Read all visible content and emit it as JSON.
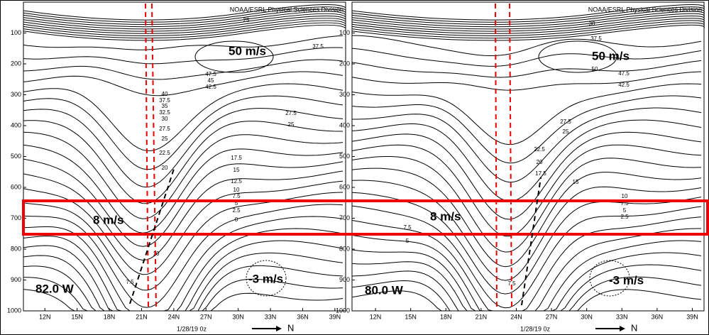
{
  "chart_data": [
    {
      "type": "contour",
      "title": "NOAA/ESRL Physical Sciences Division",
      "xlim": [
        10,
        40
      ],
      "xticks": [
        {
          "value": 12,
          "label": "12N"
        },
        {
          "value": 15,
          "label": "15N"
        },
        {
          "value": 18,
          "label": "18N"
        },
        {
          "value": 21,
          "label": "21N"
        },
        {
          "value": 24,
          "label": "24N"
        },
        {
          "value": 27,
          "label": "27N"
        },
        {
          "value": 30,
          "label": "30N"
        },
        {
          "value": 33,
          "label": "33N"
        },
        {
          "value": 36,
          "label": "36N"
        },
        {
          "value": 39,
          "label": "39N"
        }
      ],
      "ylim": [
        1000,
        0
      ],
      "yticks": [
        100,
        200,
        300,
        400,
        500,
        600,
        700,
        800,
        900,
        1000
      ],
      "x_label": "1/28/19 0z",
      "x_arrow_label": "N",
      "longitude": "82.0 W",
      "annotations": [
        "50 m/s",
        "8 m/s",
        "-3 m/s"
      ],
      "contour_labels": [
        25,
        37.5,
        47.5,
        45,
        42.5,
        40,
        37.5,
        35,
        32.5,
        30,
        27.5,
        25,
        22.5,
        20,
        27.5,
        25,
        17.5,
        15,
        12.5,
        10,
        7.5,
        5,
        2.5,
        0,
        10,
        7.5
      ]
    },
    {
      "type": "contour",
      "title": "NOAA/ESRL Physical Sciences Division",
      "xlim": [
        10,
        40
      ],
      "xticks": [
        {
          "value": 12,
          "label": "12N"
        },
        {
          "value": 15,
          "label": "15N"
        },
        {
          "value": 18,
          "label": "18N"
        },
        {
          "value": 21,
          "label": "21N"
        },
        {
          "value": 24,
          "label": "24N"
        },
        {
          "value": 27,
          "label": "27N"
        },
        {
          "value": 30,
          "label": "30N"
        },
        {
          "value": 33,
          "label": "33N"
        },
        {
          "value": 36,
          "label": "36N"
        },
        {
          "value": 39,
          "label": "39N"
        }
      ],
      "ylim": [
        1000,
        0
      ],
      "yticks": [
        100,
        200,
        300,
        400,
        500,
        600,
        700,
        800,
        900,
        1000
      ],
      "x_label": "1/28/19 0z",
      "x_arrow_label": "N",
      "longitude": "80.0 W",
      "annotations": [
        "50 m/s",
        "8 m/s",
        "-3 m/s"
      ],
      "contour_labels": [
        30,
        37.5,
        50,
        47.5,
        42.5,
        27.5,
        25,
        22.5,
        20,
        17.5,
        15,
        10,
        7.5,
        5,
        2.5,
        7.5,
        5,
        7.5
      ]
    }
  ]
}
